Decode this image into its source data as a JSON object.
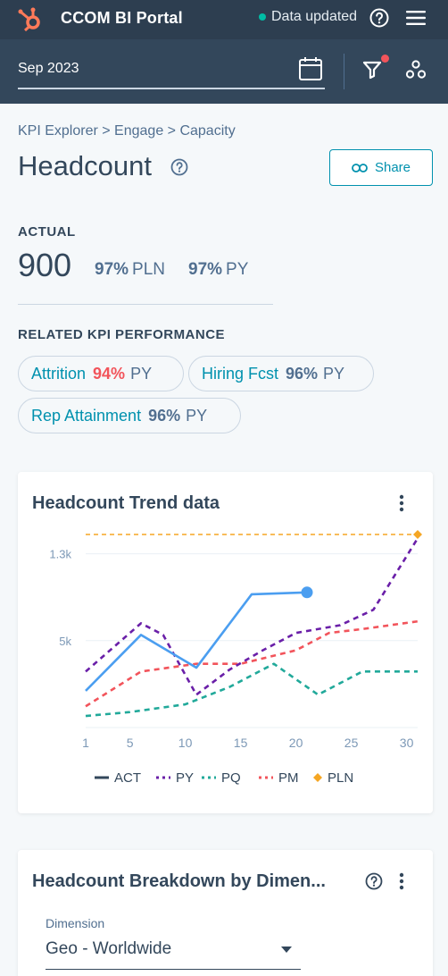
{
  "app": {
    "title": "CCOM BI Portal",
    "status": "Data updated",
    "status_color": "#00bda5",
    "brand_color": "#ff7a59"
  },
  "filters": {
    "date": "Sep 2023",
    "has_active_filter": true
  },
  "breadcrumb": "KPI Explorer > Engage > Capacity",
  "page": {
    "title": "Headcount",
    "share_label": "Share"
  },
  "actual": {
    "label": "ACTUAL",
    "value": "900",
    "comparisons": [
      {
        "pct": "97%",
        "label": "PLN"
      },
      {
        "pct": "97%",
        "label": "PY"
      }
    ]
  },
  "related": {
    "label": "RELATED KPI PERFORMANCE",
    "items": [
      {
        "name": "Attrition",
        "pct": "94%",
        "label": "PY",
        "status": "bad"
      },
      {
        "name": "Hiring Fcst",
        "pct": "96%",
        "label": "PY",
        "status": "ok"
      },
      {
        "name": "Rep Attainment",
        "pct": "96%",
        "label": "PY",
        "status": "ok"
      }
    ]
  },
  "trend_card": {
    "title": "Headcount Trend data"
  },
  "chart_data": {
    "type": "line",
    "title": "Headcount Trend data",
    "y_tick_labels": [
      "1.3k",
      "5k"
    ],
    "x_ticks": [
      1,
      5,
      10,
      15,
      20,
      25,
      30
    ],
    "xlim": [
      1,
      31
    ],
    "ylim": [
      0,
      1.0
    ],
    "grid": true,
    "legend_position": "bottom",
    "series": [
      {
        "name": "ACT",
        "style": "solid",
        "color": "#4b9ef0",
        "x": [
          1,
          6,
          11,
          16,
          21
        ],
        "y": [
          0.19,
          0.48,
          0.31,
          0.69,
          0.7
        ]
      },
      {
        "name": "PY",
        "style": "dashed",
        "color": "#6a1fa8",
        "x": [
          1,
          6,
          8,
          11,
          14,
          17,
          20,
          24,
          27,
          31
        ],
        "y": [
          0.29,
          0.54,
          0.48,
          0.17,
          0.3,
          0.4,
          0.49,
          0.53,
          0.61,
          0.98
        ]
      },
      {
        "name": "PQ",
        "style": "dashed",
        "color": "#21a99a",
        "x": [
          1,
          5,
          10,
          14,
          18,
          22,
          26,
          31
        ],
        "y": [
          0.06,
          0.08,
          0.12,
          0.21,
          0.33,
          0.17,
          0.29,
          0.29
        ]
      },
      {
        "name": "PM",
        "style": "dashed",
        "color": "#f2545b",
        "x": [
          1,
          6,
          11,
          15,
          20,
          23,
          26,
          31
        ],
        "y": [
          0.11,
          0.29,
          0.33,
          0.33,
          0.4,
          0.49,
          0.51,
          0.55
        ]
      },
      {
        "name": "PLN",
        "style": "dashed-marker",
        "color": "#f5a623",
        "x": [
          1,
          31
        ],
        "y": [
          1.0,
          1.0
        ]
      }
    ]
  },
  "breakdown_card": {
    "title": "Headcount Breakdown by Dimen...",
    "dimension_label": "Dimension",
    "dimension_value": "Geo - Worldwide"
  }
}
